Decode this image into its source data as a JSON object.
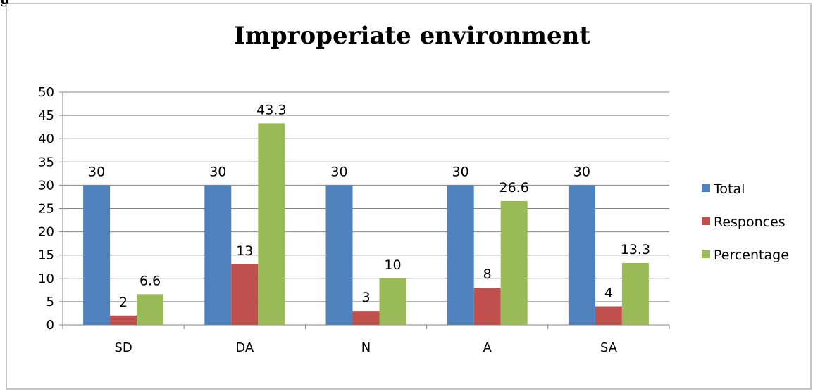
{
  "page_fragment": "g",
  "chart_data": {
    "type": "bar",
    "title": "Improperiate environment",
    "categories": [
      "SD",
      "DA",
      "N",
      "A",
      "SA"
    ],
    "series": [
      {
        "name": "Total",
        "values": [
          30,
          30,
          30,
          30,
          30
        ],
        "color": "#4F81BD"
      },
      {
        "name": "Responces",
        "values": [
          2,
          13,
          3,
          8,
          4
        ],
        "color": "#C0504D"
      },
      {
        "name": "Percentage",
        "values": [
          6.6,
          43.3,
          10,
          26.6,
          13.3
        ],
        "color": "#9BBB59"
      }
    ],
    "ylim": [
      0,
      50
    ],
    "yticks": [
      0,
      5,
      10,
      15,
      20,
      25,
      30,
      35,
      40,
      45,
      50
    ],
    "grid": true,
    "legend": "right",
    "data_labels": true
  }
}
